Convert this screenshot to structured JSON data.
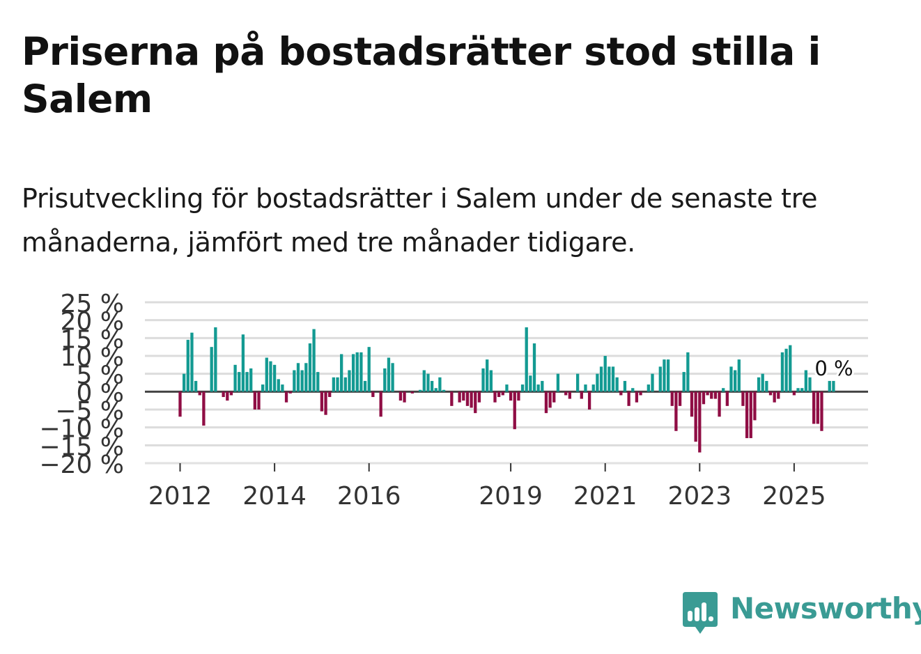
{
  "title": "Priserna på bostadsrätter stod stilla i Salem",
  "subtitle": "Prisutveckling för bostadsrätter i Salem under de senaste tre månaderna, jämfört med tre månader tidigare.",
  "logo": {
    "text": "Newsworthy",
    "icon": "bar-chart-speech-bubble-icon"
  },
  "colors": {
    "positive": "#139a92",
    "negative": "#8f0d44",
    "grid": "#dcdcdc",
    "zero": "#444444",
    "logo": "#3a9b94"
  },
  "chart_data": {
    "type": "bar",
    "title": "Priserna på bostadsrätter stod stilla i Salem",
    "ylabel": "",
    "xlabel": "",
    "ylim": [
      -20,
      25
    ],
    "yticks": [
      25,
      20,
      15,
      10,
      5,
      0,
      -5,
      -10,
      -15,
      -20
    ],
    "ytick_labels": [
      "25 %",
      "20 %",
      "15 %",
      "10 %",
      "5 %",
      "0 %",
      "−5 %",
      "−10 %",
      "−15 %",
      "−20 %"
    ],
    "xtick_labels": [
      "2012",
      "2014",
      "2016",
      "2019",
      "2021",
      "2023",
      "2025"
    ],
    "xtick_years": [
      2012,
      2014,
      2016,
      2019,
      2021,
      2023,
      2025
    ],
    "start_year": 2011,
    "start_month": 1,
    "last_label": "0 %",
    "values": [
      0,
      0,
      0,
      0,
      0,
      0,
      0,
      0,
      0,
      0,
      0,
      0,
      -7,
      5,
      14.5,
      16.5,
      3,
      -1,
      -9.5,
      0,
      12.5,
      18,
      0,
      -1.5,
      -2.5,
      -1,
      7.5,
      5.5,
      16,
      5.5,
      6.5,
      -5,
      -5,
      2,
      9.5,
      8.5,
      7.5,
      3.5,
      2,
      -3,
      -0.5,
      6,
      8,
      6,
      8,
      13.5,
      17.5,
      5.5,
      -5.5,
      -6.5,
      -1.5,
      4,
      4,
      10.5,
      4,
      6,
      10.5,
      11,
      11,
      3,
      12.5,
      -1.5,
      0,
      -7,
      6.5,
      9.5,
      8,
      0,
      -2.5,
      -3,
      0,
      -0.5,
      0,
      0.5,
      6,
      5,
      3,
      1,
      4,
      0.5,
      0,
      -4,
      0,
      -3,
      -2.5,
      -4,
      -4.5,
      -6,
      -3,
      6.5,
      9,
      6,
      -3,
      -1.5,
      -1,
      2,
      -2.5,
      -10.5,
      -2.5,
      2,
      18,
      4.5,
      13.5,
      2,
      3,
      -6,
      -4.5,
      -3,
      5,
      0,
      -1,
      -2,
      0,
      5,
      -2,
      2,
      -5,
      2,
      5,
      7,
      10,
      7,
      7,
      4,
      -1,
      3,
      -4,
      1,
      -3,
      -1,
      0,
      2,
      5,
      0,
      7,
      9,
      9,
      -4,
      -11,
      -4,
      5.5,
      11,
      -7,
      -14,
      -17,
      -3.5,
      -1,
      -2,
      -2,
      -7,
      1,
      -4,
      7,
      6,
      9,
      -4,
      -13,
      -13,
      -8,
      4,
      5,
      3,
      -1,
      -3,
      -2,
      11,
      12,
      13,
      -1,
      1,
      1,
      6,
      4,
      -9,
      -9,
      -11,
      0,
      3,
      3,
      0
    ]
  }
}
